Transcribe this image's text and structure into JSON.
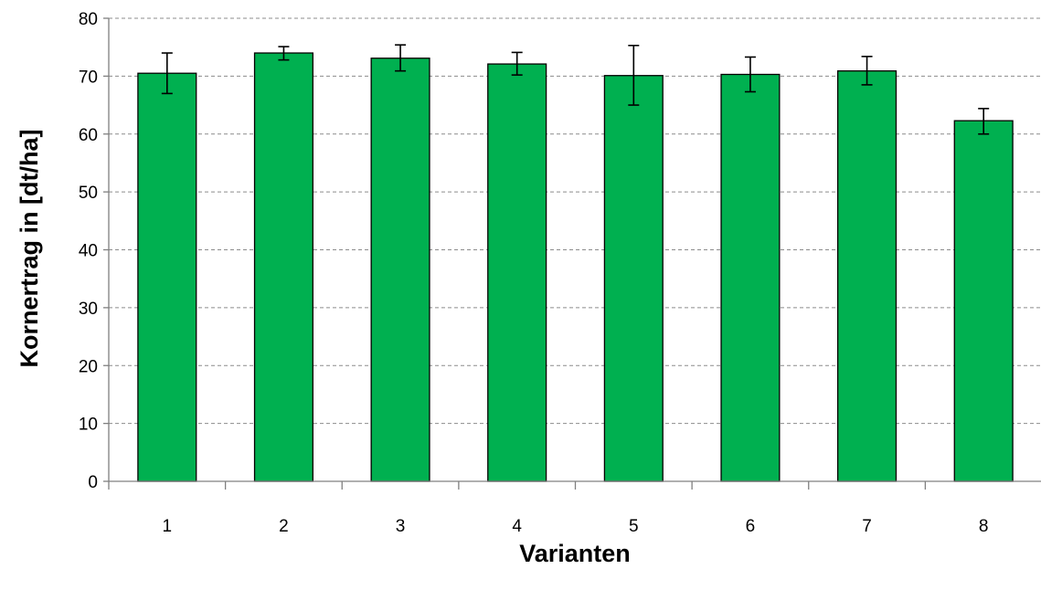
{
  "chart_data": {
    "type": "bar",
    "title": "",
    "xlabel": "Varianten",
    "ylabel": "Kornertrag in [dt/ha]",
    "categories": [
      "1",
      "2",
      "3",
      "4",
      "5",
      "6",
      "7",
      "8"
    ],
    "values": [
      70.5,
      74.0,
      73.1,
      72.1,
      70.1,
      70.3,
      70.9,
      62.3
    ],
    "error_high": [
      74.0,
      75.1,
      75.4,
      74.1,
      75.3,
      73.3,
      73.4,
      64.4
    ],
    "error_low": [
      67.0,
      72.8,
      70.9,
      70.2,
      65.0,
      67.3,
      68.5,
      60.0
    ],
    "ylim": [
      0,
      80
    ],
    "yticks": [
      "0",
      "10",
      "20",
      "30",
      "40",
      "50",
      "60",
      "70",
      "80"
    ],
    "grid": true,
    "bar_color": "#00b050"
  }
}
